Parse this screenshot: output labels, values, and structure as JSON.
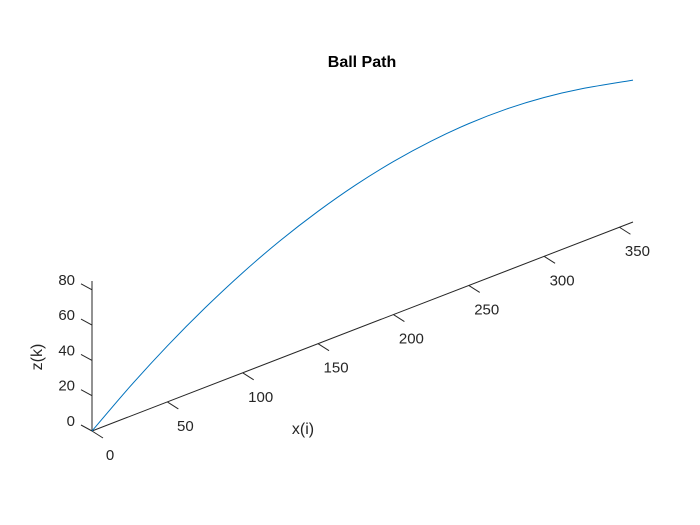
{
  "chart_data": {
    "type": "line",
    "projection": "3d",
    "title": "Ball Path",
    "xlabel": "x(i)",
    "ylabel": "",
    "zlabel": "z(k)",
    "xticks": [
      0,
      50,
      100,
      150,
      200,
      250,
      300,
      350
    ],
    "zticks": [
      0,
      20,
      40,
      60,
      80
    ],
    "xlim": [
      0,
      359
    ],
    "zlim": [
      0,
      85
    ],
    "grid": false,
    "colors": {
      "line": "#0072bd",
      "axis": "#262626"
    },
    "series": [
      {
        "x": [
          0,
          25,
          50,
          75,
          100,
          125,
          150,
          175,
          200,
          225,
          250,
          275,
          300,
          325,
          359
        ],
        "z": [
          0,
          16.7,
          31.7,
          45,
          56.7,
          66.7,
          75,
          81.7,
          86.7,
          90,
          91.7,
          91.7,
          90,
          86.7,
          80.4
        ]
      }
    ]
  }
}
